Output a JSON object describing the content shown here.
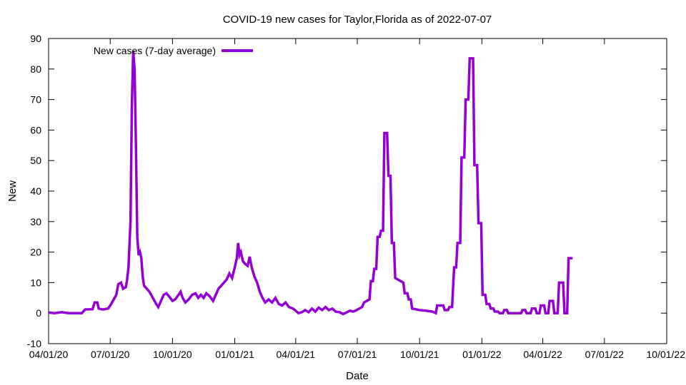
{
  "chart_data": {
    "type": "line",
    "title": "COVID-19 new cases for Taylor,Florida as of 2022-07-07",
    "xlabel": "Date",
    "ylabel": "New",
    "ylim": [
      -10,
      90
    ],
    "yticks": [
      -10,
      0,
      10,
      20,
      30,
      40,
      50,
      60,
      70,
      80,
      90
    ],
    "xlim": [
      "2020-04-01",
      "2022-10-01"
    ],
    "xticks": [
      {
        "date": "2020-04-01",
        "label": "04/01/20"
      },
      {
        "date": "2020-07-01",
        "label": "07/01/20"
      },
      {
        "date": "2020-10-01",
        "label": "10/01/20"
      },
      {
        "date": "2021-01-01",
        "label": "01/01/21"
      },
      {
        "date": "2021-04-01",
        "label": "04/01/21"
      },
      {
        "date": "2021-07-01",
        "label": "07/01/21"
      },
      {
        "date": "2021-10-01",
        "label": "10/01/21"
      },
      {
        "date": "2022-01-01",
        "label": "01/01/22"
      },
      {
        "date": "2022-04-01",
        "label": "04/01/22"
      },
      {
        "date": "2022-07-01",
        "label": "07/01/22"
      },
      {
        "date": "2022-10-01",
        "label": "10/01/22"
      }
    ],
    "grid": false,
    "legend_position": "top-left",
    "series": [
      {
        "name": "New cases (7-day average)",
        "color": "#9400d3",
        "points": [
          [
            "2020-04-01",
            0.2
          ],
          [
            "2020-04-10",
            0
          ],
          [
            "2020-04-20",
            0.3
          ],
          [
            "2020-05-01",
            0
          ],
          [
            "2020-05-20",
            0
          ],
          [
            "2020-05-25",
            1.2
          ],
          [
            "2020-06-05",
            1.3
          ],
          [
            "2020-06-08",
            3.5
          ],
          [
            "2020-06-12",
            3.5
          ],
          [
            "2020-06-14",
            1.5
          ],
          [
            "2020-06-20",
            1.2
          ],
          [
            "2020-06-28",
            1.5
          ],
          [
            "2020-07-01",
            2.5
          ],
          [
            "2020-07-05",
            4
          ],
          [
            "2020-07-10",
            6
          ],
          [
            "2020-07-13",
            9.5
          ],
          [
            "2020-07-17",
            10
          ],
          [
            "2020-07-20",
            8
          ],
          [
            "2020-07-24",
            8.5
          ],
          [
            "2020-07-26",
            11
          ],
          [
            "2020-07-28",
            15
          ],
          [
            "2020-07-31",
            30
          ],
          [
            "2020-08-02",
            68
          ],
          [
            "2020-08-04",
            86
          ],
          [
            "2020-08-06",
            80
          ],
          [
            "2020-08-08",
            55
          ],
          [
            "2020-08-10",
            25
          ],
          [
            "2020-08-12",
            19
          ],
          [
            "2020-08-14",
            20
          ],
          [
            "2020-08-16",
            18
          ],
          [
            "2020-08-18",
            12
          ],
          [
            "2020-08-20",
            9
          ],
          [
            "2020-08-24",
            8
          ],
          [
            "2020-08-28",
            7
          ],
          [
            "2020-09-02",
            5
          ],
          [
            "2020-09-07",
            3
          ],
          [
            "2020-09-10",
            2
          ],
          [
            "2020-09-14",
            4
          ],
          [
            "2020-09-18",
            6
          ],
          [
            "2020-09-22",
            6.5
          ],
          [
            "2020-09-26",
            5.5
          ],
          [
            "2020-10-01",
            4
          ],
          [
            "2020-10-05",
            4.5
          ],
          [
            "2020-10-10",
            6
          ],
          [
            "2020-10-13",
            7
          ],
          [
            "2020-10-16",
            5
          ],
          [
            "2020-10-20",
            3.5
          ],
          [
            "2020-10-25",
            4.5
          ],
          [
            "2020-10-30",
            6
          ],
          [
            "2020-11-04",
            6.5
          ],
          [
            "2020-11-08",
            5
          ],
          [
            "2020-11-12",
            6
          ],
          [
            "2020-11-16",
            5
          ],
          [
            "2020-11-20",
            6.5
          ],
          [
            "2020-11-25",
            5.5
          ],
          [
            "2020-11-30",
            4
          ],
          [
            "2020-12-04",
            6
          ],
          [
            "2020-12-08",
            8
          ],
          [
            "2020-12-12",
            9
          ],
          [
            "2020-12-16",
            10
          ],
          [
            "2020-12-20",
            11
          ],
          [
            "2020-12-24",
            13
          ],
          [
            "2020-12-28",
            11.5
          ],
          [
            "2021-01-01",
            15
          ],
          [
            "2021-01-04",
            18
          ],
          [
            "2021-01-06",
            23
          ],
          [
            "2021-01-08",
            19
          ],
          [
            "2021-01-10",
            20
          ],
          [
            "2021-01-13",
            17
          ],
          [
            "2021-01-17",
            16
          ],
          [
            "2021-01-20",
            15.5
          ],
          [
            "2021-01-23",
            18.5
          ],
          [
            "2021-01-26",
            15
          ],
          [
            "2021-01-30",
            12
          ],
          [
            "2021-02-03",
            10
          ],
          [
            "2021-02-07",
            7
          ],
          [
            "2021-02-11",
            5
          ],
          [
            "2021-02-15",
            3.5
          ],
          [
            "2021-02-20",
            4.5
          ],
          [
            "2021-02-25",
            3.5
          ],
          [
            "2021-03-02",
            5
          ],
          [
            "2021-03-07",
            3
          ],
          [
            "2021-03-12",
            2.5
          ],
          [
            "2021-03-17",
            3.5
          ],
          [
            "2021-03-22",
            2
          ],
          [
            "2021-03-28",
            1.5
          ],
          [
            "2021-04-01",
            0.8
          ],
          [
            "2021-04-05",
            0
          ],
          [
            "2021-04-10",
            0.3
          ],
          [
            "2021-04-15",
            1
          ],
          [
            "2021-04-20",
            0.3
          ],
          [
            "2021-04-25",
            1.5
          ],
          [
            "2021-04-30",
            0.5
          ],
          [
            "2021-05-05",
            1.8
          ],
          [
            "2021-05-10",
            1
          ],
          [
            "2021-05-15",
            2
          ],
          [
            "2021-05-20",
            1
          ],
          [
            "2021-05-25",
            1.5
          ],
          [
            "2021-05-30",
            0.5
          ],
          [
            "2021-06-05",
            0.3
          ],
          [
            "2021-06-10",
            -0.3
          ],
          [
            "2021-06-15",
            0.2
          ],
          [
            "2021-06-20",
            0.8
          ],
          [
            "2021-06-25",
            0.5
          ],
          [
            "2021-06-30",
            1
          ],
          [
            "2021-07-04",
            1.5
          ],
          [
            "2021-07-08",
            2
          ],
          [
            "2021-07-11",
            3.5
          ],
          [
            "2021-07-15",
            4
          ],
          [
            "2021-07-19",
            4.5
          ],
          [
            "2021-07-21",
            10.5
          ],
          [
            "2021-07-24",
            10.5
          ],
          [
            "2021-07-26",
            14.5
          ],
          [
            "2021-07-29",
            14.5
          ],
          [
            "2021-07-31",
            25
          ],
          [
            "2021-08-03",
            25
          ],
          [
            "2021-08-05",
            27
          ],
          [
            "2021-08-08",
            27
          ],
          [
            "2021-08-10",
            59
          ],
          [
            "2021-08-14",
            59
          ],
          [
            "2021-08-16",
            45
          ],
          [
            "2021-08-19",
            45
          ],
          [
            "2021-08-21",
            23
          ],
          [
            "2021-08-24",
            23
          ],
          [
            "2021-08-26",
            11.5
          ],
          [
            "2021-08-30",
            11
          ],
          [
            "2021-09-03",
            10.5
          ],
          [
            "2021-09-07",
            10
          ],
          [
            "2021-09-09",
            6.5
          ],
          [
            "2021-09-13",
            6.5
          ],
          [
            "2021-09-15",
            4.5
          ],
          [
            "2021-09-18",
            4.5
          ],
          [
            "2021-09-20",
            1.5
          ],
          [
            "2021-10-01",
            1
          ],
          [
            "2021-10-10",
            0.8
          ],
          [
            "2021-10-20",
            0.5
          ],
          [
            "2021-10-25",
            0
          ],
          [
            "2021-10-27",
            2.5
          ],
          [
            "2021-11-01",
            2.5
          ],
          [
            "2021-11-05",
            2.5
          ],
          [
            "2021-11-07",
            1
          ],
          [
            "2021-11-12",
            1
          ],
          [
            "2021-11-14",
            2
          ],
          [
            "2021-11-18",
            2
          ],
          [
            "2021-11-21",
            15
          ],
          [
            "2021-11-24",
            15
          ],
          [
            "2021-11-26",
            23
          ],
          [
            "2021-11-30",
            23
          ],
          [
            "2021-12-02",
            51
          ],
          [
            "2021-12-06",
            51
          ],
          [
            "2021-12-08",
            70
          ],
          [
            "2021-12-12",
            70
          ],
          [
            "2021-12-14",
            83.5
          ],
          [
            "2021-12-19",
            83.5
          ],
          [
            "2021-12-21",
            48.5
          ],
          [
            "2021-12-25",
            48.5
          ],
          [
            "2021-12-27",
            29.5
          ],
          [
            "2021-12-31",
            29.5
          ],
          [
            "2022-01-02",
            6
          ],
          [
            "2022-01-06",
            6
          ],
          [
            "2022-01-08",
            3
          ],
          [
            "2022-01-12",
            3
          ],
          [
            "2022-01-14",
            1.5
          ],
          [
            "2022-01-18",
            1.5
          ],
          [
            "2022-01-20",
            0.5
          ],
          [
            "2022-01-25",
            0.5
          ],
          [
            "2022-01-27",
            0
          ],
          [
            "2022-02-01",
            0
          ],
          [
            "2022-02-03",
            1
          ],
          [
            "2022-02-07",
            1
          ],
          [
            "2022-02-09",
            0
          ],
          [
            "2022-02-28",
            0
          ],
          [
            "2022-03-02",
            1
          ],
          [
            "2022-03-06",
            1
          ],
          [
            "2022-03-08",
            0
          ],
          [
            "2022-03-14",
            0
          ],
          [
            "2022-03-16",
            1.5
          ],
          [
            "2022-03-21",
            1.5
          ],
          [
            "2022-03-23",
            0
          ],
          [
            "2022-03-27",
            0
          ],
          [
            "2022-03-29",
            2.5
          ],
          [
            "2022-04-03",
            2.5
          ],
          [
            "2022-04-05",
            0
          ],
          [
            "2022-04-09",
            0
          ],
          [
            "2022-04-11",
            4
          ],
          [
            "2022-04-16",
            4
          ],
          [
            "2022-04-18",
            0
          ],
          [
            "2022-04-23",
            0
          ],
          [
            "2022-04-25",
            10
          ],
          [
            "2022-05-01",
            10
          ],
          [
            "2022-05-03",
            0
          ],
          [
            "2022-05-07",
            0
          ],
          [
            "2022-05-09",
            18
          ],
          [
            "2022-05-15",
            18
          ]
        ]
      }
    ]
  }
}
